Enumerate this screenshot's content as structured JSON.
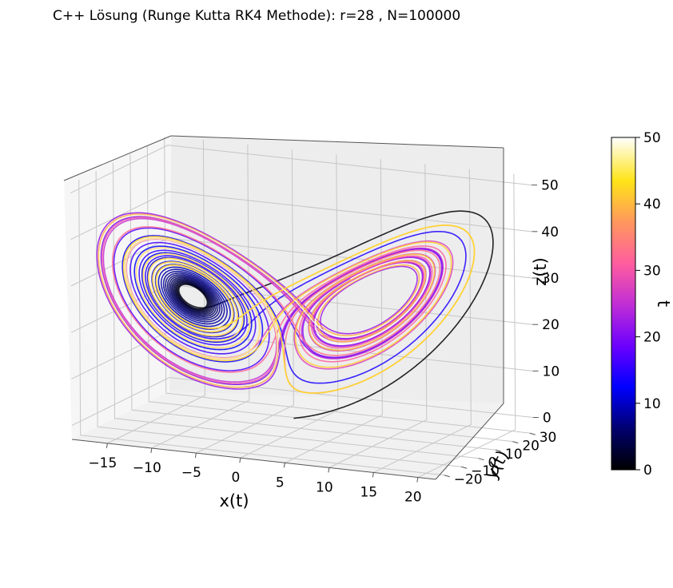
{
  "chart_data": {
    "type": "line3d",
    "title": "C++ Lösung (Runge Kutta RK4 Methode): r=28 , N=100000",
    "xlabel": "x(t)",
    "ylabel": "y(t)",
    "zlabel": "z(t)",
    "x_ticks": [
      "−15",
      "−10",
      "−5",
      "0",
      "5",
      "10",
      "15",
      "20"
    ],
    "y_ticks": [
      "−20",
      "−10",
      "0",
      "10",
      "20",
      "30"
    ],
    "z_ticks": [
      "0",
      "10",
      "20",
      "30",
      "40",
      "50"
    ],
    "xlim": [
      -19,
      22
    ],
    "ylim": [
      -25,
      32
    ],
    "zlim": [
      -3,
      52
    ],
    "grid": true,
    "colorbar": {
      "label": "t",
      "ticks": [
        "0",
        "10",
        "20",
        "30",
        "40",
        "50"
      ],
      "range": [
        0,
        50
      ],
      "colormap": "gnuplot2",
      "position": "right"
    },
    "series": {
      "system": "lorenz",
      "r": 28,
      "N": 100000,
      "t_range": [
        0,
        50
      ]
    }
  }
}
